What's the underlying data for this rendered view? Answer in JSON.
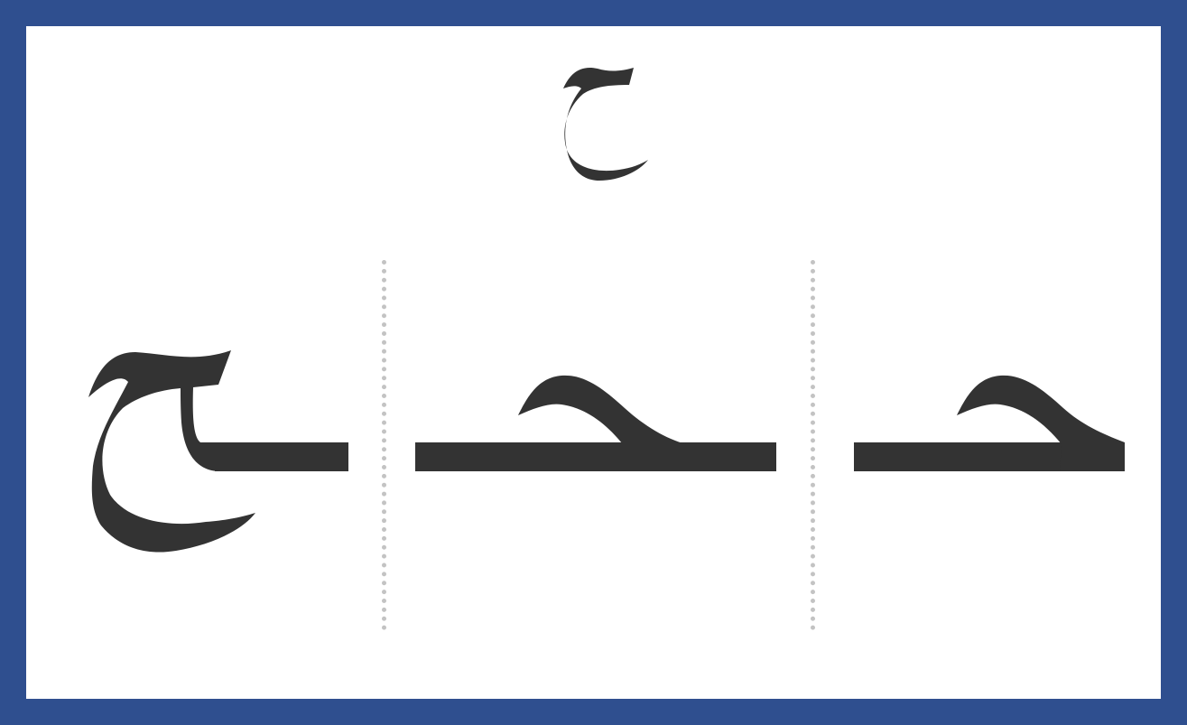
{
  "card": {
    "border_color": "#2f4f8f",
    "background_color": "#ffffff",
    "ink_color": "#333333",
    "divider_color": "#c3c3c3"
  },
  "letter": {
    "isolated_form": "ح",
    "positional_forms": [
      {
        "position": "final",
        "glyph": "ـح"
      },
      {
        "position": "medial",
        "glyph": "ـحـ"
      },
      {
        "position": "initial",
        "glyph": "حـ"
      }
    ]
  }
}
